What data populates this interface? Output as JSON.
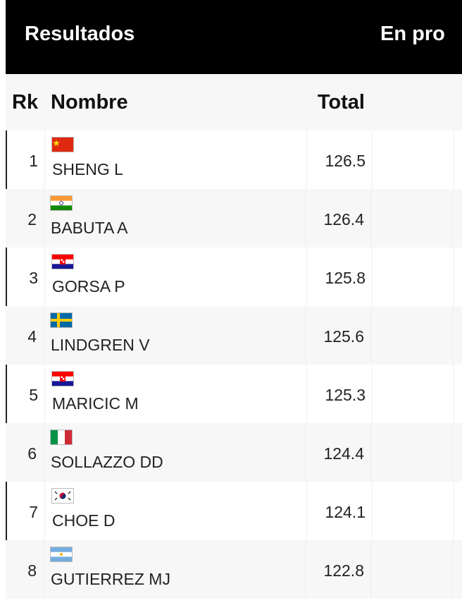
{
  "header": {
    "title": "Resultados",
    "tab": "En pro"
  },
  "table": {
    "columns": [
      "Rk",
      "Nombre",
      "Total"
    ],
    "rows": [
      {
        "rank": 1,
        "name": "SHENG L",
        "total": 126.5
      },
      {
        "rank": 2,
        "name": "BABUTA A",
        "total": 126.4
      },
      {
        "rank": 3,
        "name": "GORSA P",
        "total": 125.8
      },
      {
        "rank": 4,
        "name": "LINDGREN V",
        "total": 125.6
      },
      {
        "rank": 5,
        "name": "MARICIC M",
        "total": 125.3
      },
      {
        "rank": 6,
        "name": "SOLLAZZO DD",
        "total": 124.4
      },
      {
        "rank": 7,
        "name": "CHOE D",
        "total": 124.1
      },
      {
        "rank": 8,
        "name": "GUTIERREZ MJ",
        "total": 122.8
      }
    ]
  }
}
